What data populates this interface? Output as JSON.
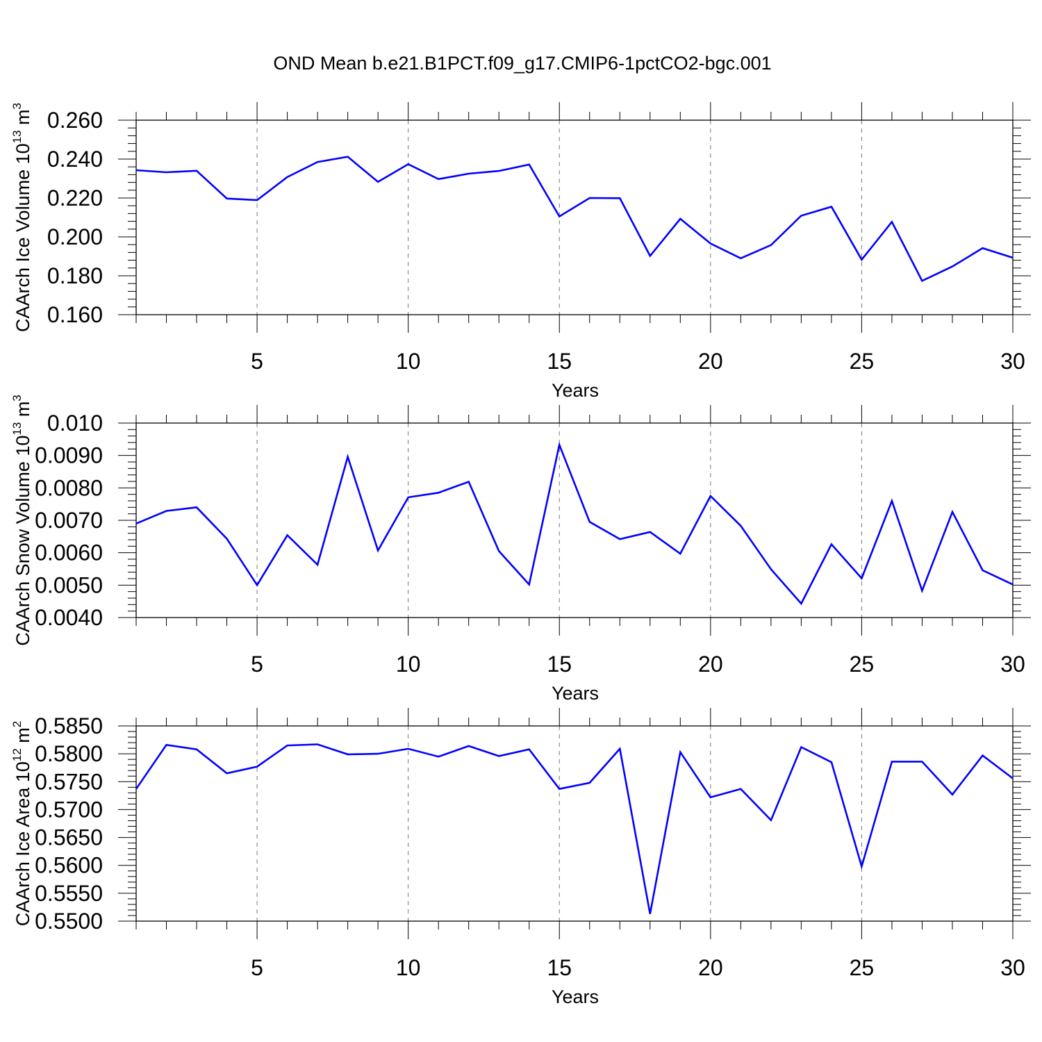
{
  "title": "OND Mean b.e21.B1PCT.f09_g17.CMIP6-1pctCO2-bgc.001",
  "line_color": "#0000ff",
  "chart_data": [
    {
      "type": "line",
      "ylabel_text": "CAArch Ice Volume 10",
      "ylabel_exp": "13",
      "ylabel_unit": "m",
      "ylabel_unit_exp": "3",
      "xlabel": "Years",
      "xlim": [
        1,
        30
      ],
      "ylim": [
        0.16,
        0.26
      ],
      "xticks": [
        5,
        10,
        15,
        20,
        25,
        30
      ],
      "xtick_labels": [
        "5",
        "10",
        "15",
        "20",
        "25",
        "30"
      ],
      "yticks": [
        0.16,
        0.18,
        0.2,
        0.22,
        0.24,
        0.26
      ],
      "ytick_labels": [
        "0.160",
        "0.180",
        "0.200",
        "0.220",
        "0.240",
        "0.260"
      ],
      "grid": "vertical dashed at major x ticks",
      "series": [
        {
          "x": [
            1,
            2,
            3,
            4,
            5,
            6,
            7,
            8,
            9,
            10,
            11,
            12,
            13,
            14,
            15,
            16,
            17,
            18,
            19,
            20,
            21,
            22,
            23,
            24,
            25,
            26,
            27,
            28,
            29,
            30
          ],
          "values": [
            0.2343,
            0.2332,
            0.234,
            0.2197,
            0.2189,
            0.2308,
            0.2385,
            0.2412,
            0.2283,
            0.2374,
            0.2297,
            0.2325,
            0.2339,
            0.2372,
            0.2105,
            0.22,
            0.2199,
            0.1902,
            0.2093,
            0.1966,
            0.189,
            0.1958,
            0.2109,
            0.2155,
            0.1883,
            0.2077,
            0.1774,
            0.1848,
            0.1942,
            0.1893
          ]
        }
      ]
    },
    {
      "type": "line",
      "ylabel_text": "CAArch Snow Volume 10",
      "ylabel_exp": "13",
      "ylabel_unit": "m",
      "ylabel_unit_exp": "3",
      "xlabel": "Years",
      "xlim": [
        1,
        30
      ],
      "ylim": [
        0.004,
        0.01
      ],
      "xticks": [
        5,
        10,
        15,
        20,
        25,
        30
      ],
      "xtick_labels": [
        "5",
        "10",
        "15",
        "20",
        "25",
        "30"
      ],
      "yticks": [
        0.004,
        0.005,
        0.006,
        0.007,
        0.008,
        0.009,
        0.01
      ],
      "ytick_labels": [
        "0.0040",
        "0.0050",
        "0.0060",
        "0.0070",
        "0.0080",
        "0.0090",
        "0.010"
      ],
      "grid": "vertical dashed at major x ticks",
      "series": [
        {
          "x": [
            1,
            2,
            3,
            4,
            5,
            6,
            7,
            8,
            9,
            10,
            11,
            12,
            13,
            14,
            15,
            16,
            17,
            18,
            19,
            20,
            21,
            22,
            23,
            24,
            25,
            26,
            27,
            28,
            29,
            30
          ],
          "values": [
            0.0069,
            0.00729,
            0.0074,
            0.00643,
            0.005,
            0.00654,
            0.00563,
            0.00896,
            0.00607,
            0.00771,
            0.00785,
            0.00819,
            0.00605,
            0.00502,
            0.00933,
            0.00695,
            0.00642,
            0.00664,
            0.00597,
            0.00775,
            0.00683,
            0.00549,
            0.00443,
            0.00626,
            0.00521,
            0.0076,
            0.00483,
            0.00726,
            0.00546,
            0.00502
          ]
        }
      ]
    },
    {
      "type": "line",
      "ylabel_text": "CAArch Ice Area 10",
      "ylabel_exp": "12",
      "ylabel_unit": "m",
      "ylabel_unit_exp": "2",
      "xlabel": "Years",
      "xlim": [
        1,
        30
      ],
      "ylim": [
        0.55,
        0.585
      ],
      "xticks": [
        5,
        10,
        15,
        20,
        25,
        30
      ],
      "xtick_labels": [
        "5",
        "10",
        "15",
        "20",
        "25",
        "30"
      ],
      "yticks": [
        0.55,
        0.555,
        0.56,
        0.565,
        0.57,
        0.575,
        0.58,
        0.585
      ],
      "ytick_labels": [
        "0.5500",
        "0.5550",
        "0.5600",
        "0.5650",
        "0.5700",
        "0.5750",
        "0.5800",
        "0.5850"
      ],
      "grid": "vertical dashed at major x ticks",
      "series": [
        {
          "x": [
            1,
            2,
            3,
            4,
            5,
            6,
            7,
            8,
            9,
            10,
            11,
            12,
            13,
            14,
            15,
            16,
            17,
            18,
            19,
            20,
            21,
            22,
            23,
            24,
            25,
            26,
            27,
            28,
            29,
            30
          ],
          "values": [
            0.5737,
            0.5816,
            0.5808,
            0.5765,
            0.5777,
            0.5815,
            0.5817,
            0.5799,
            0.58,
            0.5809,
            0.5795,
            0.5814,
            0.5796,
            0.5808,
            0.5737,
            0.5748,
            0.5809,
            0.5513,
            0.5803,
            0.5722,
            0.5737,
            0.5681,
            0.5812,
            0.5785,
            0.5598,
            0.5786,
            0.5786,
            0.5727,
            0.5797,
            0.5756
          ]
        }
      ]
    }
  ]
}
